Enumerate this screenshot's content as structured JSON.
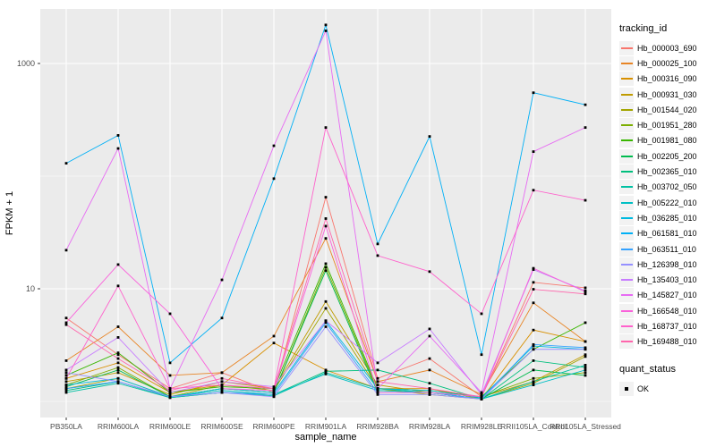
{
  "figure": {
    "type_hint": "ggplot2 line chart, log10 y scale"
  },
  "chart_data": {
    "type": "line",
    "title": "",
    "xlabel": "sample_name",
    "ylabel": "FPKM + 1",
    "y_scale": "log10",
    "ylim": [
      1,
      3000
    ],
    "y_ticks": [
      {
        "value": 10,
        "label": "10"
      },
      {
        "value": 1000,
        "label": "1000"
      }
    ],
    "y_gridlines_major": [
      10,
      1000
    ],
    "y_gridlines_minor": [
      1,
      100
    ],
    "grid": true,
    "legend_position": "right",
    "legend_title": "tracking_id",
    "panel_color": "#EBEBEB",
    "grid_color": "#FFFFFF",
    "tick_label_color": "#4D4D4D",
    "point_color": "#000000",
    "x_categories": [
      "PB350LA",
      "RRIM600LA",
      "RRIM600LE",
      "RRIM600SE",
      "RRIM600PE",
      "RRIM901LA",
      "RRIM928BA",
      "RRIM928LA",
      "RRIM928LE",
      "RRII105LA_Control",
      "RRII105LA_Stressed"
    ],
    "series": [
      {
        "name": "Hb_000003_690",
        "color": "#F8766D",
        "values": [
          5.5,
          2.6,
          1.3,
          1.8,
          1.2,
          65,
          1.6,
          2.4,
          1.1,
          11.4,
          10.2
        ]
      },
      {
        "name": "Hb_000025_100",
        "color": "#E88526",
        "values": [
          2.3,
          4.6,
          1.7,
          1.8,
          3.8,
          28,
          1.5,
          1.9,
          1.15,
          7.5,
          3.4
        ]
      },
      {
        "name": "Hb_000316_090",
        "color": "#D89000",
        "values": [
          1.6,
          2.2,
          1.2,
          1.4,
          3.3,
          1.9,
          1.3,
          1.3,
          1.05,
          4.3,
          3.4
        ]
      },
      {
        "name": "Hb_000931_030",
        "color": "#C09B00",
        "values": [
          1.5,
          1.8,
          1.15,
          1.5,
          1.3,
          7.7,
          1.4,
          1.2,
          1.1,
          1.5,
          2.6
        ]
      },
      {
        "name": "Hb_001544_020",
        "color": "#A3A500",
        "values": [
          1.3,
          1.6,
          1.1,
          1.4,
          1.25,
          6.7,
          1.3,
          1.15,
          1.05,
          1.45,
          2.5
        ]
      },
      {
        "name": "Hb_001951_280",
        "color": "#7CAE00",
        "values": [
          1.4,
          2.0,
          1.1,
          1.3,
          1.2,
          15.5,
          1.25,
          1.2,
          1.1,
          1.6,
          1.8
        ]
      },
      {
        "name": "Hb_001981_080",
        "color": "#39B600",
        "values": [
          1.7,
          2.7,
          1.2,
          1.35,
          1.3,
          16.7,
          1.3,
          1.25,
          1.1,
          2.9,
          5.0
        ]
      },
      {
        "name": "Hb_002205_200",
        "color": "#00BB4E",
        "values": [
          1.35,
          1.9,
          1.1,
          1.3,
          1.2,
          14.5,
          1.2,
          1.2,
          1.05,
          1.9,
          1.7
        ]
      },
      {
        "name": "Hb_002365_010",
        "color": "#00BF7D",
        "values": [
          1.25,
          1.5,
          1.08,
          1.2,
          1.15,
          1.85,
          1.9,
          1.45,
          1.05,
          2.3,
          2.0
        ]
      },
      {
        "name": "Hb_003702_050",
        "color": "#00C1A3",
        "values": [
          1.2,
          1.45,
          1.08,
          1.2,
          1.12,
          1.8,
          1.3,
          1.2,
          1.05,
          1.5,
          2.1
        ]
      },
      {
        "name": "Hb_005222_010",
        "color": "#00BFC4",
        "values": [
          1.3,
          1.5,
          1.1,
          1.25,
          1.15,
          1.75,
          1.25,
          1.2,
          1.05,
          1.4,
          1.9
        ]
      },
      {
        "name": "Hb_036285_010",
        "color": "#00BAE0",
        "values": [
          1.4,
          1.6,
          1.1,
          1.3,
          1.2,
          5.2,
          1.3,
          1.25,
          1.08,
          3.1,
          2.9
        ]
      },
      {
        "name": "Hb_061581_010",
        "color": "#00B0F6",
        "values": [
          130,
          230,
          2.2,
          5.5,
          95,
          2200,
          25,
          225,
          2.6,
          550,
          430
        ]
      },
      {
        "name": "Hb_063511_010",
        "color": "#35A2FF",
        "values": [
          1.3,
          1.5,
          1.1,
          1.2,
          1.15,
          5.0,
          1.2,
          1.2,
          1.05,
          3.2,
          3.0
        ]
      },
      {
        "name": "Hb_126398_010",
        "color": "#9590FF",
        "values": [
          1.8,
          1.5,
          1.1,
          1.2,
          1.1,
          4.6,
          1.15,
          1.15,
          1.05,
          2.9,
          2.9
        ]
      },
      {
        "name": "Hb_135403_010",
        "color": "#C77CFF",
        "values": [
          1.9,
          3.7,
          1.2,
          1.5,
          1.35,
          5.2,
          2.2,
          4.4,
          1.15,
          14.8,
          9.6
        ]
      },
      {
        "name": "Hb_145827_010",
        "color": "#E76BF3",
        "values": [
          22,
          176,
          1.3,
          12,
          186,
          1950,
          1.3,
          3.8,
          1.2,
          165,
          270
        ]
      },
      {
        "name": "Hb_166548_010",
        "color": "#FA62DB",
        "values": [
          5.0,
          16.4,
          6.0,
          1.3,
          1.25,
          36,
          1.2,
          1.2,
          1.1,
          15.2,
          9.4
        ]
      },
      {
        "name": "Hb_168737_010",
        "color": "#FF61CC",
        "values": [
          1.6,
          10.6,
          1.3,
          1.4,
          1.3,
          270,
          19.7,
          14.2,
          6.0,
          75,
          61
        ]
      },
      {
        "name": "Hb_169488_010",
        "color": "#FF65AC",
        "values": [
          4.8,
          2.4,
          1.25,
          1.6,
          1.3,
          42,
          1.5,
          1.3,
          1.1,
          9.9,
          9.0
        ]
      }
    ],
    "point_legend": {
      "title": "quant_status",
      "items": [
        {
          "label": "OK",
          "shape": "square",
          "color": "#000000"
        }
      ]
    }
  }
}
